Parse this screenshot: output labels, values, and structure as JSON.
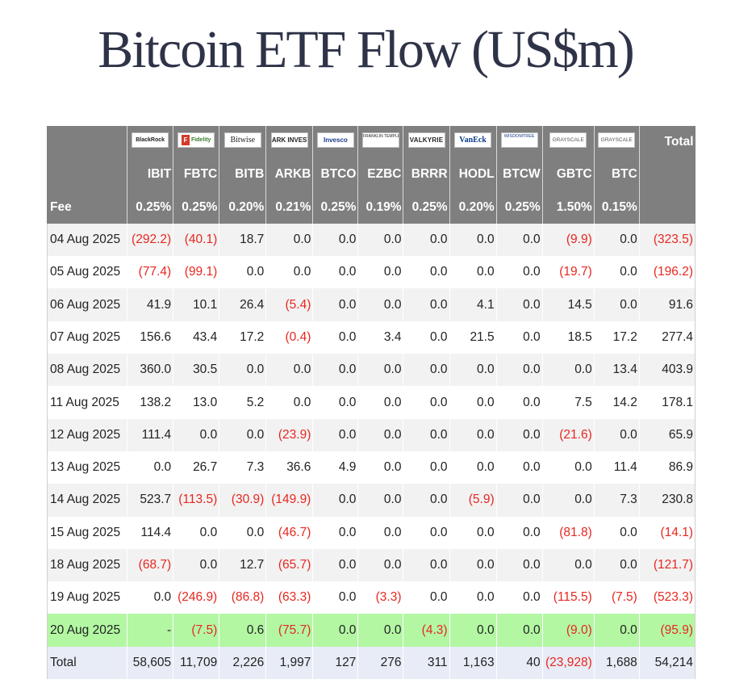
{
  "title": "Bitcoin ETF Flow (US$m)",
  "header": {
    "logos": [
      {
        "key": "blackrock",
        "text": "BlackRock"
      },
      {
        "key": "fidelity",
        "mark": "F",
        "text": "Fidelity"
      },
      {
        "key": "bitwise",
        "text": "Bitwise"
      },
      {
        "key": "ark",
        "text": "ARK INVEST"
      },
      {
        "key": "invesco",
        "text": "Invesco"
      },
      {
        "key": "franklin",
        "text": "FRANKLIN TEMPLETON"
      },
      {
        "key": "valkyrie",
        "text": "VALKYRIE"
      },
      {
        "key": "vaneck",
        "text": "VanEck"
      },
      {
        "key": "wisdomtree",
        "text": "WISDOMTREE"
      },
      {
        "key": "grayscale1",
        "text": "GRAYSCALE"
      },
      {
        "key": "grayscale2",
        "text": "GRAYSCALE"
      }
    ],
    "total_label": "Total",
    "tickers": [
      "IBIT",
      "FBTC",
      "BITB",
      "ARKB",
      "BTCO",
      "EZBC",
      "BRRR",
      "HODL",
      "BTCW",
      "GBTC",
      "BTC"
    ],
    "fee_label": "Fee",
    "fees": [
      "0.25%",
      "0.25%",
      "0.20%",
      "0.21%",
      "0.25%",
      "0.19%",
      "0.25%",
      "0.20%",
      "0.25%",
      "1.50%",
      "0.15%"
    ]
  },
  "rows": [
    {
      "date": "04 Aug 2025",
      "values": [
        "(292.2)",
        "(40.1)",
        "18.7",
        "0.0",
        "0.0",
        "0.0",
        "0.0",
        "0.0",
        "0.0",
        "(9.9)",
        "0.0",
        "(323.5)"
      ]
    },
    {
      "date": "05 Aug 2025",
      "values": [
        "(77.4)",
        "(99.1)",
        "0.0",
        "0.0",
        "0.0",
        "0.0",
        "0.0",
        "0.0",
        "0.0",
        "(19.7)",
        "0.0",
        "(196.2)"
      ]
    },
    {
      "date": "06 Aug 2025",
      "values": [
        "41.9",
        "10.1",
        "26.4",
        "(5.4)",
        "0.0",
        "0.0",
        "0.0",
        "4.1",
        "0.0",
        "14.5",
        "0.0",
        "91.6"
      ]
    },
    {
      "date": "07 Aug 2025",
      "values": [
        "156.6",
        "43.4",
        "17.2",
        "(0.4)",
        "0.0",
        "3.4",
        "0.0",
        "21.5",
        "0.0",
        "18.5",
        "17.2",
        "277.4"
      ]
    },
    {
      "date": "08 Aug 2025",
      "values": [
        "360.0",
        "30.5",
        "0.0",
        "0.0",
        "0.0",
        "0.0",
        "0.0",
        "0.0",
        "0.0",
        "0.0",
        "13.4",
        "403.9"
      ]
    },
    {
      "date": "11 Aug 2025",
      "values": [
        "138.2",
        "13.0",
        "5.2",
        "0.0",
        "0.0",
        "0.0",
        "0.0",
        "0.0",
        "0.0",
        "7.5",
        "14.2",
        "178.1"
      ]
    },
    {
      "date": "12 Aug 2025",
      "values": [
        "111.4",
        "0.0",
        "0.0",
        "(23.9)",
        "0.0",
        "0.0",
        "0.0",
        "0.0",
        "0.0",
        "(21.6)",
        "0.0",
        "65.9"
      ]
    },
    {
      "date": "13 Aug 2025",
      "values": [
        "0.0",
        "26.7",
        "7.3",
        "36.6",
        "4.9",
        "0.0",
        "0.0",
        "0.0",
        "0.0",
        "0.0",
        "11.4",
        "86.9"
      ]
    },
    {
      "date": "14 Aug 2025",
      "values": [
        "523.7",
        "(113.5)",
        "(30.9)",
        "(149.9)",
        "0.0",
        "0.0",
        "0.0",
        "(5.9)",
        "0.0",
        "0.0",
        "7.3",
        "230.8"
      ]
    },
    {
      "date": "15 Aug 2025",
      "values": [
        "114.4",
        "0.0",
        "0.0",
        "(46.7)",
        "0.0",
        "0.0",
        "0.0",
        "0.0",
        "0.0",
        "(81.8)",
        "0.0",
        "(14.1)"
      ]
    },
    {
      "date": "18 Aug 2025",
      "values": [
        "(68.7)",
        "0.0",
        "12.7",
        "(65.7)",
        "0.0",
        "0.0",
        "0.0",
        "0.0",
        "0.0",
        "0.0",
        "0.0",
        "(121.7)"
      ]
    },
    {
      "date": "19 Aug 2025",
      "values": [
        "0.0",
        "(246.9)",
        "(86.8)",
        "(63.3)",
        "0.0",
        "(3.3)",
        "0.0",
        "0.0",
        "0.0",
        "(115.5)",
        "(7.5)",
        "(523.3)"
      ]
    },
    {
      "date": "20 Aug 2025",
      "values": [
        "-",
        "(7.5)",
        "0.6",
        "(75.7)",
        "0.0",
        "0.0",
        "(4.3)",
        "0.0",
        "0.0",
        "(9.0)",
        "0.0",
        "(95.9)"
      ],
      "highlight": true
    }
  ],
  "total_row": {
    "label": "Total",
    "values": [
      "58,605",
      "11,709",
      "2,226",
      "1,997",
      "127",
      "276",
      "311",
      "1,163",
      "40",
      "(23,928)",
      "1,688",
      "54,214"
    ]
  },
  "colors": {
    "header_bg": "#7f7f7f",
    "negative": "#e8271f",
    "highlight_row": "#b3f7a3",
    "total_row": "#e8ecf6",
    "title": "#2e3348"
  }
}
